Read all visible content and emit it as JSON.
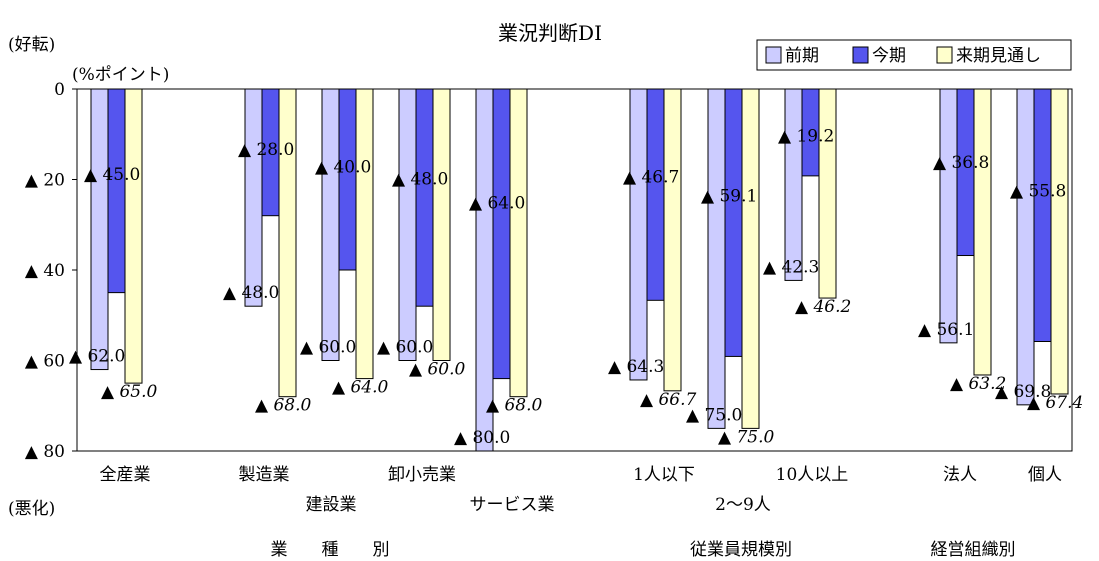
{
  "chart_data": {
    "type": "bar",
    "title": "業況判断DI",
    "ylabel_top": "(好転)",
    "ylabel_unit": "(%ポイント)",
    "ylabel_bottom": "(悪化)",
    "ylim": [
      0,
      80
    ],
    "y_ticks": [
      "0",
      "▲ 20",
      "▲ 40",
      "▲ 60",
      "▲ 80"
    ],
    "legend_position": "top-right",
    "colors": {
      "prev": "#ccccff",
      "curr": "#5555ee",
      "next": "#ffffcc"
    },
    "categories": [
      "全産業",
      "製造業",
      "建設業",
      "卸小売業",
      "サービス業",
      "1人以下",
      "2〜9人",
      "10人以上",
      "法人",
      "個人"
    ],
    "series": [
      {
        "name": "前期",
        "values": [
          -62.0,
          -48.0,
          -60.0,
          -60.0,
          -80.0,
          -64.3,
          -75.0,
          -42.3,
          -56.1,
          -69.8
        ],
        "labels": [
          "▲ 62.0",
          "▲ 48.0",
          "▲ 60.0",
          "▲ 60.0",
          "▲ 80.0",
          "▲ 64.3",
          "▲ 75.0",
          "▲ 42.3",
          "▲ 56.1",
          "▲ 69.8"
        ]
      },
      {
        "name": "今期",
        "values": [
          -45.0,
          -28.0,
          -40.0,
          -48.0,
          -64.0,
          -46.7,
          -59.1,
          -19.2,
          -36.8,
          -55.8
        ],
        "labels": [
          "▲ 45.0",
          "▲ 28.0",
          "▲ 40.0",
          "▲ 48.0",
          "▲ 64.0",
          "▲ 46.7",
          "▲ 59.1",
          "▲ 19.2",
          "▲ 36.8",
          "▲ 55.8"
        ]
      },
      {
        "name": "来期見通し",
        "values": [
          -65.0,
          -68.0,
          -64.0,
          -60.0,
          -68.0,
          -66.7,
          -75.0,
          -46.2,
          -63.2,
          -67.4
        ],
        "labels": [
          "▲ 65.0",
          "▲ 68.0",
          "▲ 64.0",
          "▲ 60.0",
          "▲ 68.0",
          "▲ 66.7",
          "▲ 75.0",
          "▲ 46.2",
          "▲ 63.2",
          "▲ 67.4"
        ]
      }
    ],
    "groups": [
      "業　　種　　別",
      "従業員規模別",
      "経営組織別"
    ]
  }
}
